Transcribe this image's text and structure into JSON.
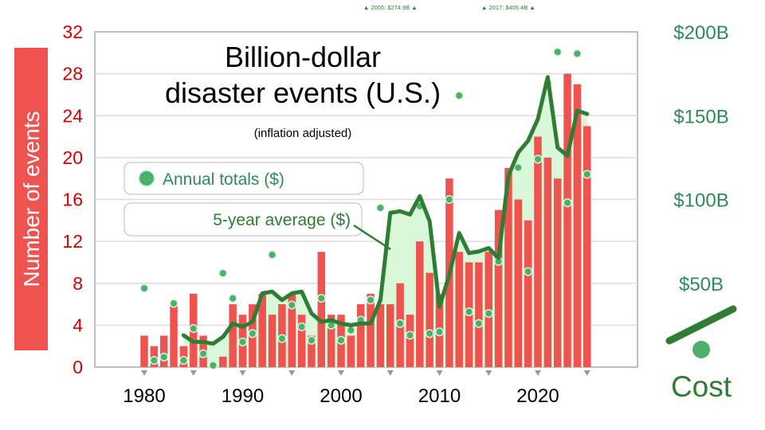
{
  "chart_data": {
    "type": "bar",
    "title_line1": "Billion-dollar",
    "title_line2": "disaster events (U.S.)",
    "subtitle": "(inflation adjusted)",
    "ylabel": "Number of events",
    "y2label": "Cost",
    "ylim": [
      0,
      32
    ],
    "y_ticks": [
      "0",
      "4",
      "8",
      "12",
      "16",
      "20",
      "24",
      "28",
      "32"
    ],
    "y2lim": [
      0,
      200
    ],
    "y2_ticks": [
      {
        "label": "$50B",
        "value": 50
      },
      {
        "label": "$100B",
        "value": 100
      },
      {
        "label": "$150B",
        "value": 150
      },
      {
        "label": "$200B",
        "value": 200
      }
    ],
    "x_ticks": [
      "1980",
      "1990",
      "2000",
      "2010",
      "2020"
    ],
    "legend": {
      "dots_label": "Annual totals ($)",
      "line_label": "5-year average ($)"
    },
    "offchart_notes": [
      {
        "label": "▲ 2005: $274.9B ▲",
        "year": 2005
      },
      {
        "label": "▲ 2017: $405.4B ▲",
        "year": 2017
      }
    ],
    "years": [
      1980,
      1981,
      1982,
      1983,
      1984,
      1985,
      1986,
      1987,
      1988,
      1989,
      1990,
      1991,
      1992,
      1993,
      1994,
      1995,
      1996,
      1997,
      1998,
      1999,
      2000,
      2001,
      2002,
      2003,
      2004,
      2005,
      2006,
      2007,
      2008,
      2009,
      2010,
      2011,
      2012,
      2013,
      2014,
      2015,
      2016,
      2017,
      2018,
      2019,
      2020,
      2021,
      2022,
      2023,
      2024,
      2025
    ],
    "events": [
      3,
      2,
      3,
      6,
      2,
      7,
      3,
      0,
      1,
      6,
      5,
      6,
      7,
      5,
      6,
      7,
      5,
      3,
      11,
      5,
      5,
      3,
      6,
      7,
      6,
      6,
      8,
      5,
      12,
      9,
      7,
      18,
      11,
      10,
      10,
      11,
      15,
      19,
      16,
      14,
      22,
      20,
      18,
      28,
      27,
      23
    ],
    "annual_cost_billions": [
      47,
      4,
      6,
      38,
      4,
      23,
      8,
      1,
      56,
      41,
      15,
      20,
      null,
      67,
      17,
      37,
      24,
      16,
      41,
      25,
      16,
      22,
      28,
      40,
      95,
      null,
      26,
      19,
      96,
      20,
      21,
      100,
      162,
      33,
      26,
      32,
      63,
      null,
      119,
      57,
      124,
      169,
      188,
      98,
      187,
      115
    ],
    "five_year_avg_billions": [
      null,
      null,
      null,
      null,
      19,
      15,
      15,
      14,
      18,
      26,
      24,
      27,
      44,
      45,
      40,
      44,
      45,
      32,
      27,
      28,
      26,
      25,
      26,
      26,
      40,
      92,
      93,
      91,
      102,
      87,
      36,
      55,
      80,
      68,
      69,
      71,
      65,
      114,
      128,
      135,
      148,
      173,
      131,
      126,
      153,
      151
    ]
  }
}
